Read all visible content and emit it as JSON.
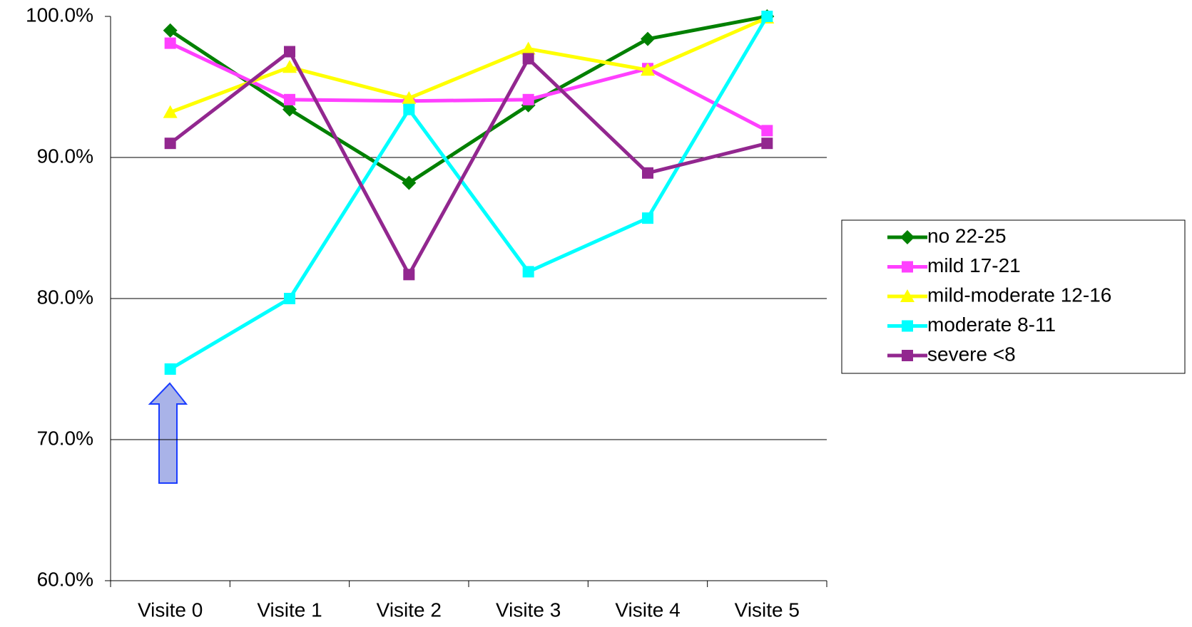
{
  "chart_data": {
    "type": "line",
    "categories": [
      "Visite 0",
      "Visite 1",
      "Visite 2",
      "Visite 3",
      "Visite 4",
      "Visite 5"
    ],
    "series": [
      {
        "name": "no  22-25",
        "color": "#008000",
        "marker": "diamond",
        "values": [
          99.0,
          93.4,
          88.2,
          93.7,
          98.4,
          100.0
        ]
      },
      {
        "name": "mild  17-21",
        "color": "#ff40ff",
        "marker": "square",
        "values": [
          98.1,
          94.1,
          94.0,
          94.1,
          96.3,
          91.9
        ]
      },
      {
        "name": "mild-moderate  12-16",
        "color": "#ffff00",
        "marker": "triangle",
        "values": [
          93.2,
          96.4,
          94.2,
          97.7,
          96.2,
          99.9
        ]
      },
      {
        "name": "moderate  8-11",
        "color": "#00ffff",
        "marker": "square",
        "values": [
          75.0,
          80.0,
          93.4,
          81.9,
          85.7,
          100.0
        ]
      },
      {
        "name": "severe <8",
        "color": "#92278f",
        "marker": "square",
        "values": [
          91.0,
          97.5,
          81.7,
          97.0,
          88.9,
          91.0
        ]
      }
    ],
    "ylim": [
      60,
      100
    ],
    "yticks": [
      {
        "value": 60,
        "label": "60.0%"
      },
      {
        "value": 70,
        "label": "70.0%"
      },
      {
        "value": 80,
        "label": "80.0%"
      },
      {
        "value": 90,
        "label": "90.0%"
      },
      {
        "value": 100,
        "label": "100.0%"
      }
    ],
    "grid": true,
    "legend": "right"
  }
}
